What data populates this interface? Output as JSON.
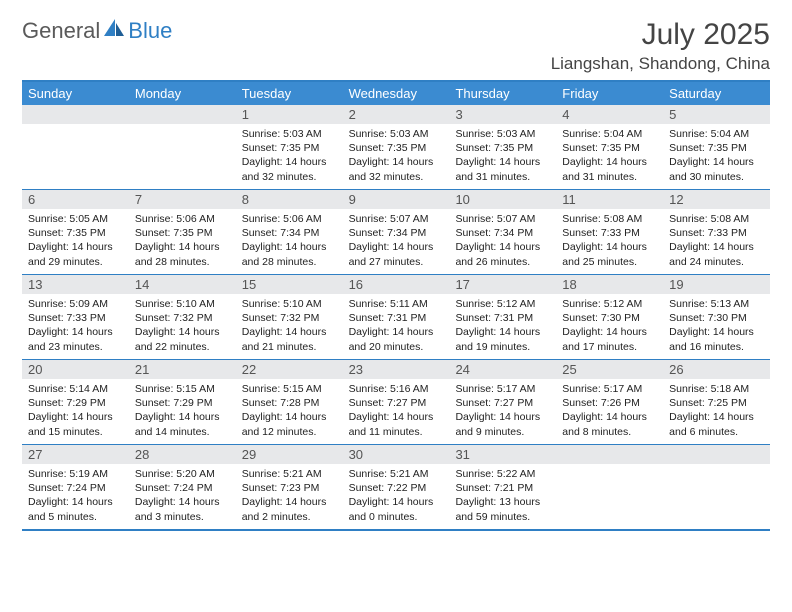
{
  "brand": {
    "part1": "General",
    "part2": "Blue"
  },
  "title": "July 2025",
  "location": "Liangshan, Shandong, China",
  "colors": {
    "accent": "#3b8bd1",
    "border": "#2f7fc4",
    "daynum_bg": "#e7e8ea",
    "text": "#222222",
    "muted": "#555555",
    "white": "#ffffff"
  },
  "days_of_week": [
    "Sunday",
    "Monday",
    "Tuesday",
    "Wednesday",
    "Thursday",
    "Friday",
    "Saturday"
  ],
  "first_dow_index": 2,
  "days": [
    {
      "n": 1,
      "sunrise": "5:03 AM",
      "sunset": "7:35 PM",
      "daylight": "14 hours and 32 minutes."
    },
    {
      "n": 2,
      "sunrise": "5:03 AM",
      "sunset": "7:35 PM",
      "daylight": "14 hours and 32 minutes."
    },
    {
      "n": 3,
      "sunrise": "5:03 AM",
      "sunset": "7:35 PM",
      "daylight": "14 hours and 31 minutes."
    },
    {
      "n": 4,
      "sunrise": "5:04 AM",
      "sunset": "7:35 PM",
      "daylight": "14 hours and 31 minutes."
    },
    {
      "n": 5,
      "sunrise": "5:04 AM",
      "sunset": "7:35 PM",
      "daylight": "14 hours and 30 minutes."
    },
    {
      "n": 6,
      "sunrise": "5:05 AM",
      "sunset": "7:35 PM",
      "daylight": "14 hours and 29 minutes."
    },
    {
      "n": 7,
      "sunrise": "5:06 AM",
      "sunset": "7:35 PM",
      "daylight": "14 hours and 28 minutes."
    },
    {
      "n": 8,
      "sunrise": "5:06 AM",
      "sunset": "7:34 PM",
      "daylight": "14 hours and 28 minutes."
    },
    {
      "n": 9,
      "sunrise": "5:07 AM",
      "sunset": "7:34 PM",
      "daylight": "14 hours and 27 minutes."
    },
    {
      "n": 10,
      "sunrise": "5:07 AM",
      "sunset": "7:34 PM",
      "daylight": "14 hours and 26 minutes."
    },
    {
      "n": 11,
      "sunrise": "5:08 AM",
      "sunset": "7:33 PM",
      "daylight": "14 hours and 25 minutes."
    },
    {
      "n": 12,
      "sunrise": "5:08 AM",
      "sunset": "7:33 PM",
      "daylight": "14 hours and 24 minutes."
    },
    {
      "n": 13,
      "sunrise": "5:09 AM",
      "sunset": "7:33 PM",
      "daylight": "14 hours and 23 minutes."
    },
    {
      "n": 14,
      "sunrise": "5:10 AM",
      "sunset": "7:32 PM",
      "daylight": "14 hours and 22 minutes."
    },
    {
      "n": 15,
      "sunrise": "5:10 AM",
      "sunset": "7:32 PM",
      "daylight": "14 hours and 21 minutes."
    },
    {
      "n": 16,
      "sunrise": "5:11 AM",
      "sunset": "7:31 PM",
      "daylight": "14 hours and 20 minutes."
    },
    {
      "n": 17,
      "sunrise": "5:12 AM",
      "sunset": "7:31 PM",
      "daylight": "14 hours and 19 minutes."
    },
    {
      "n": 18,
      "sunrise": "5:12 AM",
      "sunset": "7:30 PM",
      "daylight": "14 hours and 17 minutes."
    },
    {
      "n": 19,
      "sunrise": "5:13 AM",
      "sunset": "7:30 PM",
      "daylight": "14 hours and 16 minutes."
    },
    {
      "n": 20,
      "sunrise": "5:14 AM",
      "sunset": "7:29 PM",
      "daylight": "14 hours and 15 minutes."
    },
    {
      "n": 21,
      "sunrise": "5:15 AM",
      "sunset": "7:29 PM",
      "daylight": "14 hours and 14 minutes."
    },
    {
      "n": 22,
      "sunrise": "5:15 AM",
      "sunset": "7:28 PM",
      "daylight": "14 hours and 12 minutes."
    },
    {
      "n": 23,
      "sunrise": "5:16 AM",
      "sunset": "7:27 PM",
      "daylight": "14 hours and 11 minutes."
    },
    {
      "n": 24,
      "sunrise": "5:17 AM",
      "sunset": "7:27 PM",
      "daylight": "14 hours and 9 minutes."
    },
    {
      "n": 25,
      "sunrise": "5:17 AM",
      "sunset": "7:26 PM",
      "daylight": "14 hours and 8 minutes."
    },
    {
      "n": 26,
      "sunrise": "5:18 AM",
      "sunset": "7:25 PM",
      "daylight": "14 hours and 6 minutes."
    },
    {
      "n": 27,
      "sunrise": "5:19 AM",
      "sunset": "7:24 PM",
      "daylight": "14 hours and 5 minutes."
    },
    {
      "n": 28,
      "sunrise": "5:20 AM",
      "sunset": "7:24 PM",
      "daylight": "14 hours and 3 minutes."
    },
    {
      "n": 29,
      "sunrise": "5:21 AM",
      "sunset": "7:23 PM",
      "daylight": "14 hours and 2 minutes."
    },
    {
      "n": 30,
      "sunrise": "5:21 AM",
      "sunset": "7:22 PM",
      "daylight": "14 hours and 0 minutes."
    },
    {
      "n": 31,
      "sunrise": "5:22 AM",
      "sunset": "7:21 PM",
      "daylight": "13 hours and 59 minutes."
    }
  ],
  "labels": {
    "sunrise": "Sunrise:",
    "sunset": "Sunset:",
    "daylight": "Daylight:"
  }
}
